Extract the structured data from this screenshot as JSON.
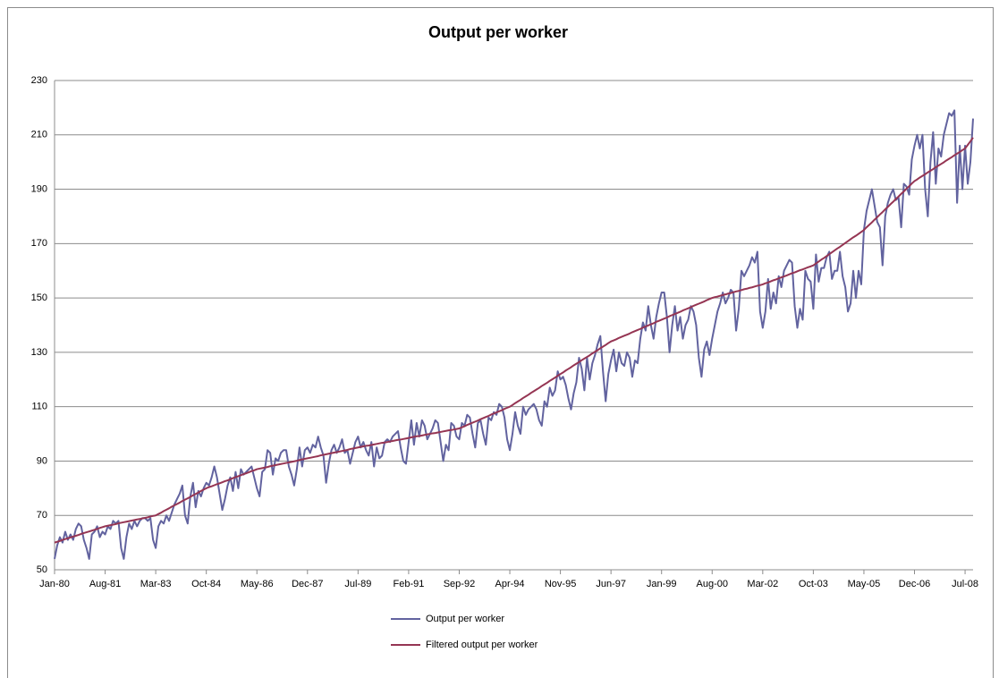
{
  "chart_data": {
    "type": "line",
    "title": "Output per worker",
    "categories": [
      "Jan-80",
      null,
      null,
      null,
      null,
      null,
      null,
      null,
      null,
      null,
      null,
      null,
      null,
      null,
      null,
      null,
      null,
      null,
      null,
      "Aug-81",
      null,
      null,
      null,
      null,
      null,
      null,
      null,
      null,
      null,
      null,
      null,
      null,
      null,
      null,
      null,
      null,
      null,
      null,
      "Mar-83",
      null,
      null,
      null,
      null,
      null,
      null,
      null,
      null,
      null,
      null,
      null,
      null,
      null,
      null,
      null,
      null,
      null,
      null,
      "Oct-84",
      null,
      null,
      null,
      null,
      null,
      null,
      null,
      null,
      null,
      null,
      null,
      null,
      null,
      null,
      null,
      null,
      null,
      null,
      "May-86",
      null,
      null,
      null,
      null,
      null,
      null,
      null,
      null,
      null,
      null,
      null,
      null,
      null,
      null,
      null,
      null,
      null,
      null,
      "Dec-87",
      null,
      null,
      null,
      null,
      null,
      null,
      null,
      null,
      null,
      null,
      null,
      null,
      null,
      null,
      null,
      null,
      null,
      null,
      "Jul-89",
      null,
      null,
      null,
      null,
      null,
      null,
      null,
      null,
      null,
      null,
      null,
      null,
      null,
      null,
      null,
      null,
      null,
      null,
      "Feb-91",
      null,
      null,
      null,
      null,
      null,
      null,
      null,
      null,
      null,
      null,
      null,
      null,
      null,
      null,
      null,
      null,
      null,
      null,
      "Sep-92",
      null,
      null,
      null,
      null,
      null,
      null,
      null,
      null,
      null,
      null,
      null,
      null,
      null,
      null,
      null,
      null,
      null,
      null,
      "Apr-94",
      null,
      null,
      null,
      null,
      null,
      null,
      null,
      null,
      null,
      null,
      null,
      null,
      null,
      null,
      null,
      null,
      null,
      null,
      "Nov-95",
      null,
      null,
      null,
      null,
      null,
      null,
      null,
      null,
      null,
      null,
      null,
      null,
      null,
      null,
      null,
      null,
      null,
      null,
      "Jun-97",
      null,
      null,
      null,
      null,
      null,
      null,
      null,
      null,
      null,
      null,
      null,
      null,
      null,
      null,
      null,
      null,
      null,
      null,
      "Jan-99",
      null,
      null,
      null,
      null,
      null,
      null,
      null,
      null,
      null,
      null,
      null,
      null,
      null,
      null,
      null,
      null,
      null,
      null,
      "Aug-00",
      null,
      null,
      null,
      null,
      null,
      null,
      null,
      null,
      null,
      null,
      null,
      null,
      null,
      null,
      null,
      null,
      null,
      null,
      "Mar-02",
      null,
      null,
      null,
      null,
      null,
      null,
      null,
      null,
      null,
      null,
      null,
      null,
      null,
      null,
      null,
      null,
      null,
      null,
      "Oct-03",
      null,
      null,
      null,
      null,
      null,
      null,
      null,
      null,
      null,
      null,
      null,
      null,
      null,
      null,
      null,
      null,
      null,
      null,
      "May-05",
      null,
      null,
      null,
      null,
      null,
      null,
      null,
      null,
      null,
      null,
      null,
      null,
      null,
      null,
      null,
      null,
      null,
      null,
      "Dec-06",
      null,
      null,
      null,
      null,
      null,
      null,
      null,
      null,
      null,
      null,
      null,
      null,
      null,
      null,
      null,
      null,
      null,
      null,
      "Jul-08",
      null,
      null,
      null
    ],
    "series": [
      {
        "name": "Output per worker",
        "color": "#62639f",
        "values": [
          54,
          59,
          62,
          60,
          64,
          61,
          63,
          61,
          65,
          67,
          66,
          61,
          58,
          54,
          63,
          64,
          66,
          62,
          64,
          63,
          66,
          65,
          68,
          67,
          68,
          58,
          54,
          62,
          67,
          65,
          68,
          66,
          68,
          69,
          69,
          68,
          69,
          61,
          58,
          66,
          68,
          67,
          70,
          68,
          71,
          74,
          76,
          78,
          81,
          70,
          67,
          77,
          82,
          73,
          79,
          77,
          80,
          82,
          81,
          84,
          88,
          84,
          78,
          72,
          76,
          81,
          84,
          79,
          86,
          80,
          87,
          85,
          86,
          87,
          88,
          84,
          80,
          77,
          86,
          87,
          94,
          93,
          85,
          91,
          90,
          93,
          94,
          94,
          88,
          85,
          81,
          87,
          95,
          88,
          94,
          95,
          93,
          96,
          95,
          99,
          95,
          92,
          82,
          89,
          94,
          96,
          93,
          95,
          98,
          93,
          94,
          89,
          93,
          97,
          99,
          95,
          97,
          94,
          92,
          97,
          88,
          95,
          91,
          92,
          97,
          98,
          97,
          99,
          100,
          101,
          95,
          90,
          89,
          97,
          105,
          96,
          104,
          99,
          105,
          103,
          98,
          100,
          102,
          105,
          104,
          97,
          90,
          96,
          94,
          104,
          103,
          99,
          98,
          104,
          103,
          107,
          106,
          100,
          95,
          104,
          105,
          100,
          96,
          106,
          105,
          108,
          107,
          111,
          110,
          106,
          98,
          94,
          100,
          108,
          103,
          100,
          110,
          107,
          109,
          110,
          111,
          109,
          105,
          103,
          112,
          110,
          117,
          114,
          116,
          123,
          120,
          121,
          118,
          113,
          109,
          115,
          119,
          128,
          124,
          116,
          128,
          120,
          126,
          129,
          133,
          136,
          123,
          112,
          122,
          127,
          131,
          123,
          130,
          126,
          125,
          130,
          128,
          121,
          127,
          126,
          135,
          141,
          138,
          147,
          140,
          135,
          143,
          148,
          152,
          152,
          143,
          130,
          140,
          147,
          138,
          143,
          135,
          140,
          142,
          147,
          145,
          140,
          128,
          121,
          131,
          134,
          129,
          135,
          140,
          145,
          148,
          152,
          148,
          150,
          153,
          152,
          138,
          146,
          160,
          158,
          160,
          162,
          165,
          163,
          167,
          145,
          139,
          145,
          157,
          146,
          152,
          148,
          158,
          154,
          160,
          162,
          164,
          163,
          147,
          139,
          146,
          142,
          160,
          157,
          156,
          146,
          166,
          156,
          161,
          161,
          165,
          167,
          157,
          160,
          160,
          167,
          158,
          154,
          145,
          148,
          160,
          150,
          160,
          155,
          175,
          182,
          186,
          190,
          184,
          178,
          176,
          162,
          180,
          185,
          188,
          190,
          186,
          187,
          176,
          192,
          191,
          188,
          201,
          206,
          210,
          205,
          210,
          190,
          180,
          200,
          211,
          192,
          205,
          202,
          210,
          214,
          218,
          217,
          219,
          185,
          206,
          190,
          206,
          192,
          200,
          216
        ]
      },
      {
        "name": "Filtered output per worker",
        "color": "#953553",
        "values": [
          60,
          60.3,
          60.6,
          61,
          61.3,
          61.6,
          61.9,
          62.2,
          62.5,
          62.8,
          63.2,
          63.5,
          63.8,
          64.1,
          64.4,
          64.7,
          65,
          65.4,
          65.7,
          66,
          66.2,
          66.4,
          66.6,
          66.8,
          67.1,
          67.3,
          67.5,
          67.7,
          67.9,
          68.1,
          68.3,
          68.5,
          68.7,
          68.9,
          69.1,
          69.3,
          69.6,
          69.8,
          70,
          70.5,
          71,
          71.6,
          72.1,
          72.6,
          73.2,
          73.7,
          74.2,
          74.7,
          75.3,
          75.8,
          76.3,
          76.8,
          77.4,
          77.9,
          78.4,
          79,
          79.5,
          80,
          80.4,
          80.7,
          81.1,
          81.5,
          81.8,
          82.2,
          82.6,
          82.9,
          83.3,
          83.7,
          84.1,
          84.4,
          84.8,
          85.2,
          85.5,
          85.9,
          86.3,
          86.6,
          87,
          87.2,
          87.4,
          87.6,
          87.8,
          88.1,
          88.3,
          88.5,
          88.7,
          88.9,
          89.1,
          89.3,
          89.5,
          89.7,
          89.9,
          90.1,
          90.4,
          90.6,
          90.8,
          91,
          91.2,
          91.4,
          91.6,
          91.8,
          92.1,
          92.3,
          92.5,
          92.7,
          92.9,
          93.1,
          93.3,
          93.5,
          93.7,
          93.9,
          94.1,
          94.4,
          94.6,
          94.8,
          95,
          95.2,
          95.4,
          95.6,
          95.7,
          95.9,
          96.1,
          96.3,
          96.5,
          96.7,
          96.8,
          97,
          97.2,
          97.4,
          97.6,
          97.8,
          97.9,
          98.1,
          98.3,
          98.5,
          98.7,
          98.9,
          99.1,
          99.2,
          99.4,
          99.6,
          99.8,
          100,
          100.2,
          100.3,
          100.5,
          100.7,
          100.9,
          101.1,
          101.3,
          101.4,
          101.6,
          101.8,
          102,
          102.4,
          102.8,
          103.3,
          103.7,
          104.1,
          104.5,
          104.9,
          105.4,
          105.8,
          106.2,
          106.6,
          107.1,
          107.5,
          107.9,
          108.3,
          108.7,
          109.2,
          109.6,
          110,
          110.6,
          111.3,
          111.9,
          112.5,
          113.2,
          113.8,
          114.4,
          115.1,
          115.7,
          116.3,
          116.9,
          117.6,
          118.2,
          118.8,
          119.5,
          120.1,
          120.7,
          121.4,
          122,
          122.6,
          123.3,
          123.9,
          124.5,
          125.2,
          125.8,
          126.4,
          127.1,
          127.7,
          128.3,
          128.9,
          129.6,
          130.2,
          130.8,
          131.5,
          132.1,
          132.7,
          133.4,
          134,
          134.4,
          134.8,
          135.3,
          135.7,
          136.1,
          136.5,
          136.9,
          137.4,
          137.8,
          138.2,
          138.6,
          139.1,
          139.5,
          139.9,
          140.3,
          140.7,
          141.2,
          141.6,
          142,
          142.4,
          142.8,
          143.3,
          143.7,
          144.1,
          144.5,
          144.9,
          145.4,
          145.8,
          146.2,
          146.6,
          147.1,
          147.5,
          147.9,
          148.3,
          148.7,
          149.2,
          149.6,
          150,
          150.3,
          150.5,
          150.8,
          151.1,
          151.3,
          151.6,
          151.8,
          152.1,
          152.4,
          152.6,
          152.9,
          153.2,
          153.4,
          153.7,
          153.9,
          154.2,
          154.5,
          154.7,
          155,
          155.4,
          155.7,
          156.1,
          156.5,
          156.8,
          157.2,
          157.6,
          157.9,
          158.3,
          158.7,
          159.1,
          159.4,
          159.8,
          160.2,
          160.5,
          160.9,
          161.3,
          161.6,
          162,
          162.7,
          163.4,
          164.1,
          164.7,
          165.4,
          166.1,
          166.8,
          167.5,
          168.2,
          168.8,
          169.5,
          170.2,
          170.9,
          171.6,
          172.3,
          172.9,
          173.6,
          174.3,
          175,
          176,
          176.9,
          177.8,
          178.8,
          179.7,
          180.7,
          181.6,
          182.6,
          183.5,
          184.5,
          185.4,
          186.4,
          187.3,
          188.3,
          189.2,
          190.2,
          191.1,
          192.1,
          193,
          193.6,
          194.3,
          194.9,
          195.5,
          196.2,
          196.8,
          197.4,
          198.1,
          198.7,
          199.3,
          199.9,
          200.6,
          201.2,
          201.8,
          202.5,
          203.1,
          203.7,
          204.4,
          205,
          206.3,
          207.6,
          209
        ]
      }
    ],
    "ylim": [
      50,
      230
    ],
    "yticks": [
      50,
      70,
      90,
      110,
      130,
      150,
      170,
      190,
      210,
      230
    ],
    "grid": true,
    "legend": "bottom"
  }
}
